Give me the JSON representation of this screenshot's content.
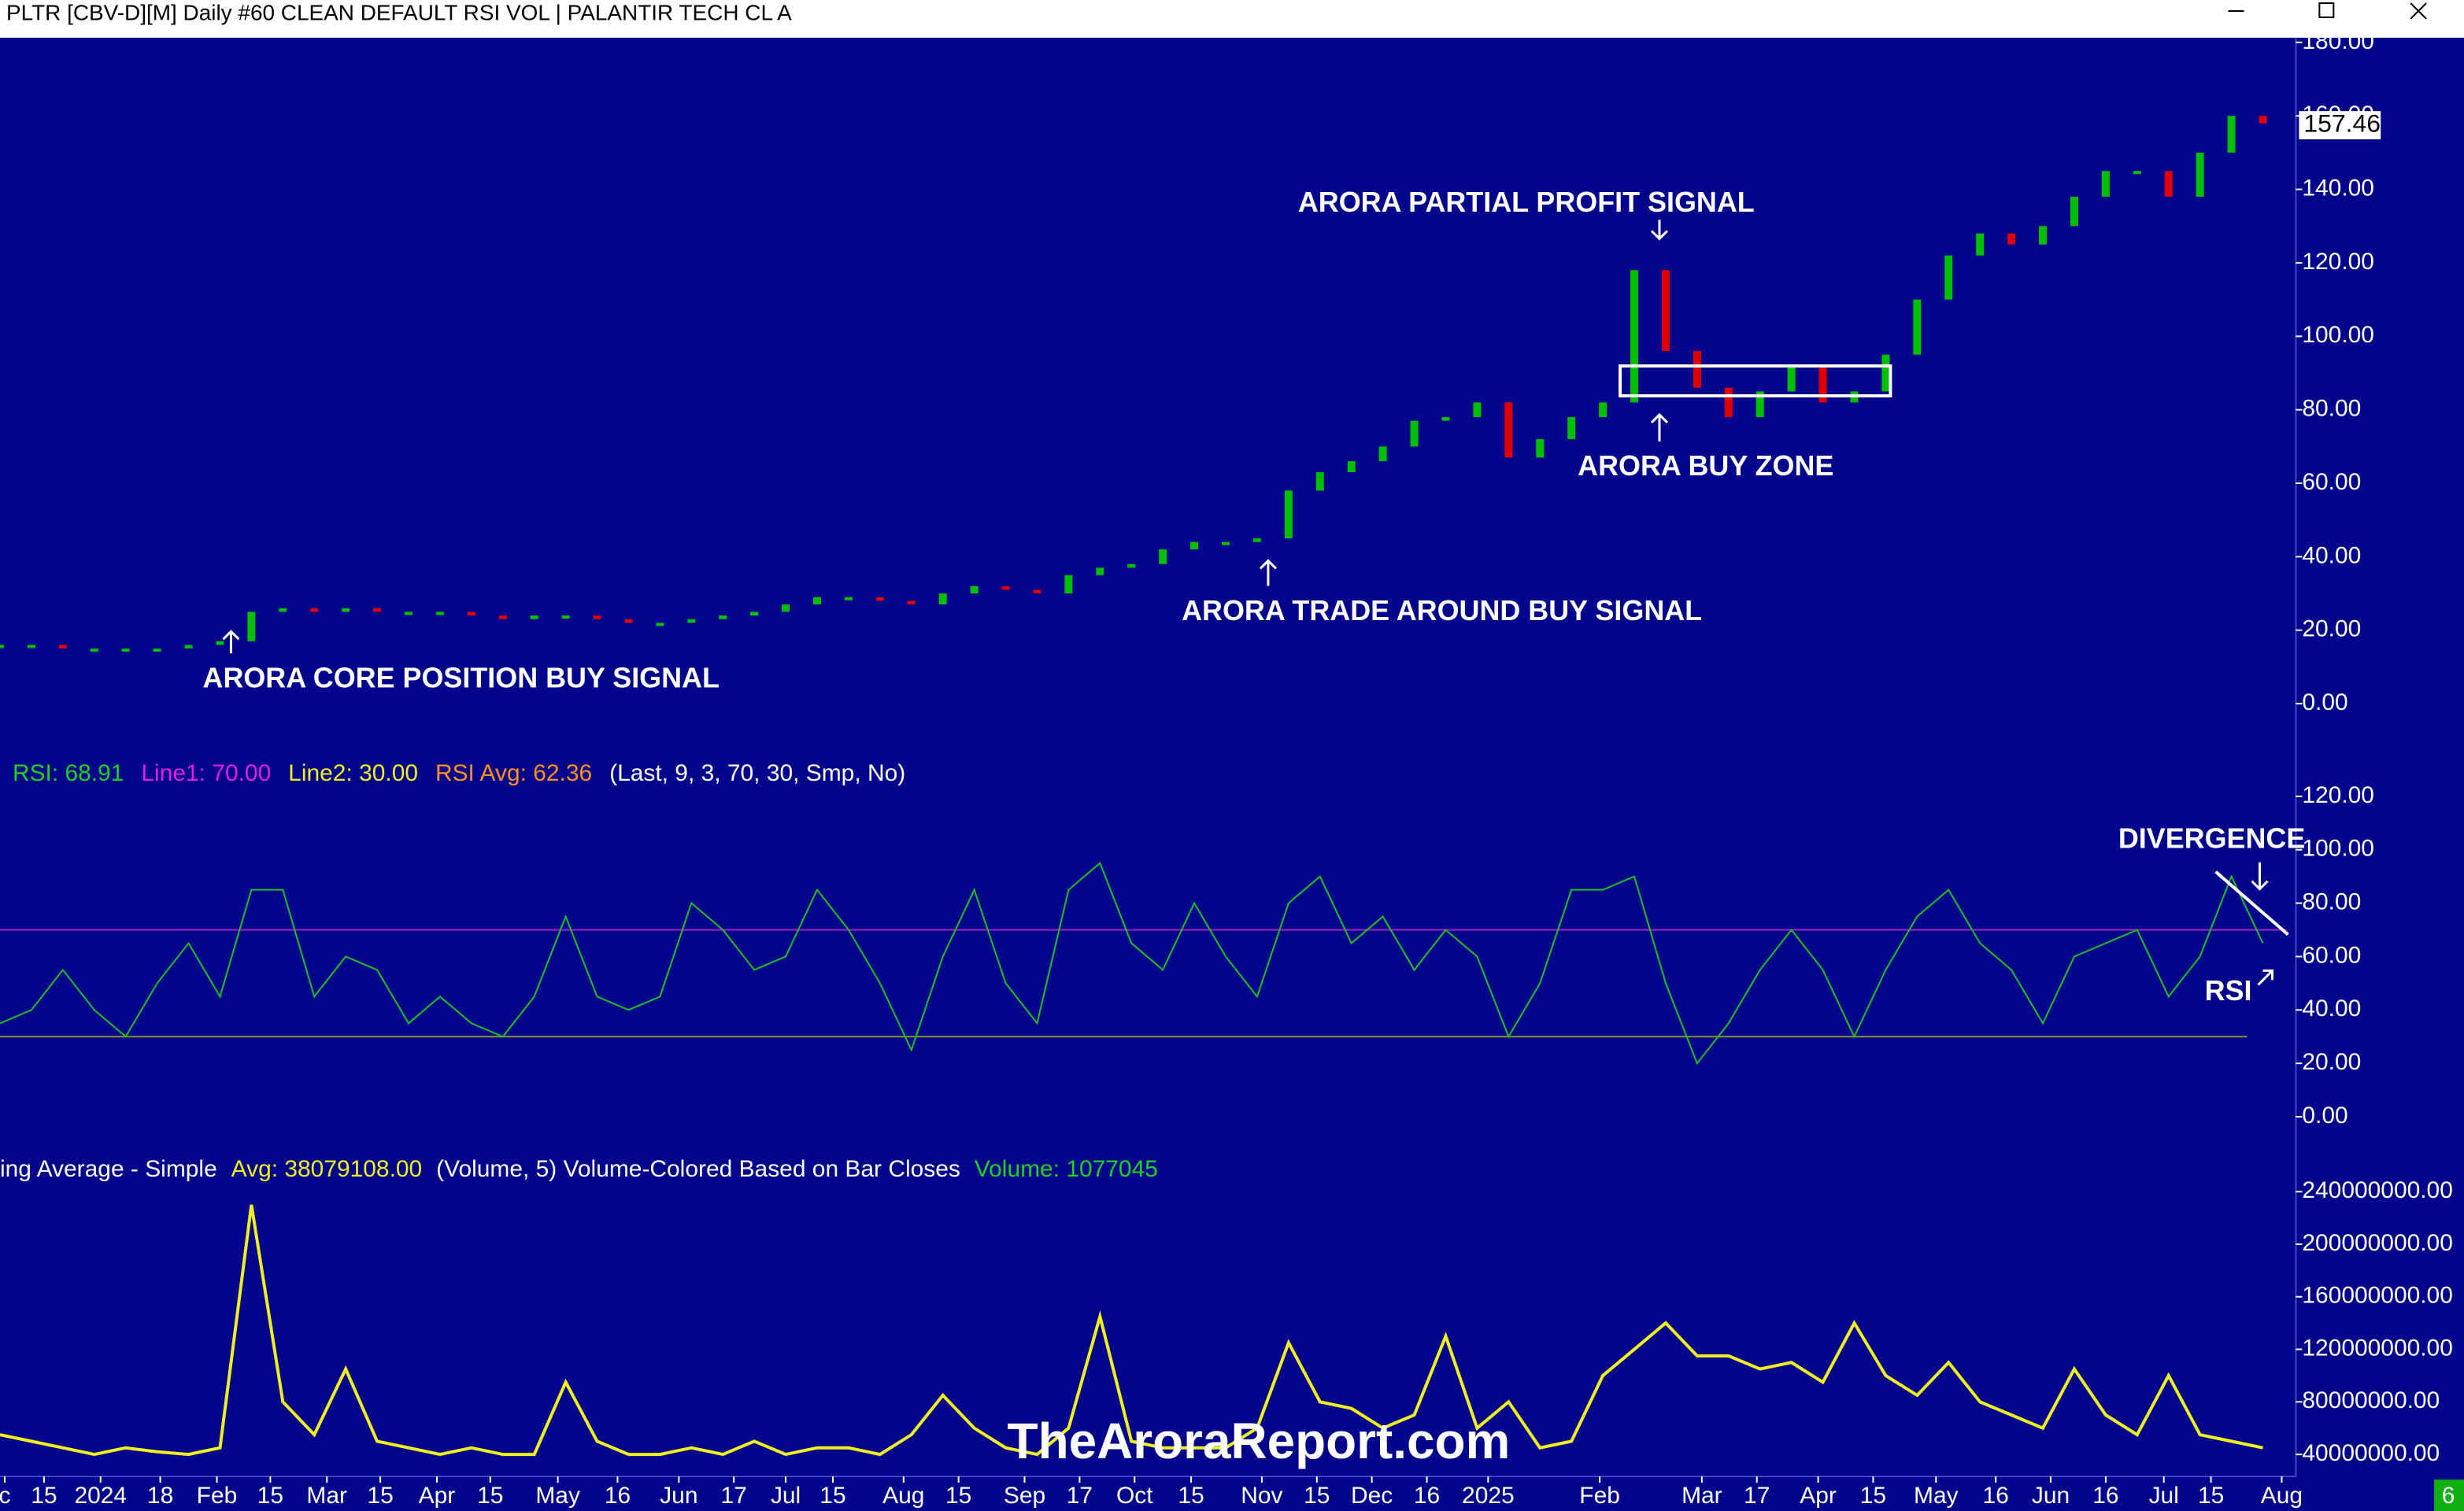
{
  "window": {
    "title": "PLTR [CBV-D][M]  Daily #60 CLEAN DEFAULT RSI VOL | PALANTIR TECH CL A"
  },
  "chart_data": {
    "type": "candlestick",
    "xlim": [
      0,
      73
    ],
    "xticks": [
      {
        "value": 0.15,
        "label": "c"
      },
      {
        "value": 1.4,
        "label": "15"
      },
      {
        "value": 3.2,
        "label": "2024"
      },
      {
        "value": 5.1,
        "label": "18"
      },
      {
        "value": 6.9,
        "label": "Feb"
      },
      {
        "value": 8.6,
        "label": "15"
      },
      {
        "value": 10.4,
        "label": "Mar"
      },
      {
        "value": 12.1,
        "label": "15"
      },
      {
        "value": 13.9,
        "label": "Apr"
      },
      {
        "value": 15.6,
        "label": "15"
      },
      {
        "value": 17.75,
        "label": "May"
      },
      {
        "value": 19.65,
        "label": "16"
      },
      {
        "value": 21.6,
        "label": "Jun"
      },
      {
        "value": 23.35,
        "label": "17"
      },
      {
        "value": 25,
        "label": "Jul"
      },
      {
        "value": 26.5,
        "label": "15"
      },
      {
        "value": 28.75,
        "label": "Aug"
      },
      {
        "value": 30.5,
        "label": "15"
      },
      {
        "value": 32.6,
        "label": "Sep"
      },
      {
        "value": 34.35,
        "label": "17"
      },
      {
        "value": 36.1,
        "label": "Oct"
      },
      {
        "value": 37.9,
        "label": "15"
      },
      {
        "value": 40.15,
        "label": "Nov"
      },
      {
        "value": 41.9,
        "label": "15"
      },
      {
        "value": 43.65,
        "label": "Dec"
      },
      {
        "value": 45.4,
        "label": "16"
      },
      {
        "value": 47.35,
        "label": "2025"
      },
      {
        "value": 50.9,
        "label": "Feb"
      },
      {
        "value": 54.15,
        "label": "Mar"
      },
      {
        "value": 55.9,
        "label": "17"
      },
      {
        "value": 57.85,
        "label": "Apr"
      },
      {
        "value": 59.6,
        "label": "15"
      },
      {
        "value": 61.6,
        "label": "May"
      },
      {
        "value": 63.5,
        "label": "16"
      },
      {
        "value": 65.25,
        "label": "Jun"
      },
      {
        "value": 67,
        "label": "16"
      },
      {
        "value": 68.85,
        "label": "Jul"
      },
      {
        "value": 70.35,
        "label": "15"
      },
      {
        "value": 72.6,
        "label": "Aug"
      }
    ],
    "price": {
      "color_up": "#00c000",
      "color_down": "#e00000",
      "values": [
        16,
        16,
        15,
        15,
        15,
        15,
        16,
        17,
        25,
        26,
        25,
        26,
        25,
        25,
        25,
        24,
        23,
        24,
        24,
        23,
        22,
        22,
        23,
        24,
        25,
        27,
        29,
        29,
        28,
        27,
        30,
        32,
        31,
        30,
        35,
        37,
        38,
        42,
        44,
        44,
        45,
        58,
        63,
        66,
        70,
        77,
        78,
        82,
        67,
        72,
        78,
        82,
        118,
        96,
        86,
        78,
        85,
        92,
        82,
        85,
        95,
        110,
        122,
        128,
        125,
        130,
        138,
        145,
        145,
        138,
        150,
        160,
        158
      ],
      "ylim": [
        0,
        180
      ],
      "yticks": [
        {
          "value": 0,
          "label": "0.00"
        },
        {
          "value": 20,
          "label": "20.00"
        },
        {
          "value": 40,
          "label": "40.00"
        },
        {
          "value": 60,
          "label": "60.00"
        },
        {
          "value": 80,
          "label": "80.00"
        },
        {
          "value": 100,
          "label": "100.00"
        },
        {
          "value": 120,
          "label": "120.00"
        },
        {
          "value": 140,
          "label": "140.00"
        },
        {
          "value": 160,
          "label": "160.00"
        },
        {
          "value": 180,
          "label": "180.00"
        }
      ],
      "last_price": "157.46",
      "annotations": [
        "ARORA CORE POSITION BUY SIGNAL",
        "ARORA TRADE AROUND BUY SIGNAL",
        "ARORA PARTIAL PROFIT SIGNAL",
        "ARORA BUY ZONE"
      ]
    },
    "rsi": {
      "color": "#20c020",
      "legend": [
        "RSI: 68.91",
        "Line1: 70.00",
        "Line2: 30.00",
        "RSI Avg: 62.36",
        "(Last, 9, 3, 70, 30, Smp, No)"
      ],
      "legend_colors": [
        "#20d020",
        "#e020e0",
        "#f0f020",
        "#ff9020",
        "#ffffff"
      ],
      "line1": 70,
      "line1_color": "#a020c0",
      "line2": 30,
      "line2_color": "#909020",
      "values": [
        35,
        40,
        55,
        40,
        30,
        50,
        65,
        45,
        85,
        85,
        45,
        60,
        55,
        35,
        45,
        35,
        30,
        45,
        75,
        45,
        40,
        45,
        80,
        70,
        55,
        60,
        85,
        70,
        50,
        25,
        60,
        85,
        50,
        35,
        85,
        95,
        65,
        55,
        80,
        60,
        45,
        80,
        90,
        65,
        75,
        55,
        70,
        60,
        30,
        50,
        85,
        85,
        90,
        50,
        20,
        35,
        55,
        70,
        55,
        30,
        55,
        75,
        85,
        65,
        55,
        35,
        60,
        65,
        70,
        45,
        60,
        90,
        65
      ],
      "ylim": [
        0,
        120
      ],
      "yticks": [
        {
          "value": 0,
          "label": "0.00"
        },
        {
          "value": 20,
          "label": "20.00"
        },
        {
          "value": 40,
          "label": "40.00"
        },
        {
          "value": 60,
          "label": "60.00"
        },
        {
          "value": 80,
          "label": "80.00"
        },
        {
          "value": 100,
          "label": "100.00"
        },
        {
          "value": 120,
          "label": "120.00"
        }
      ],
      "annotations": [
        "DIVERGENCE",
        "RSI"
      ]
    },
    "volume": {
      "color": "#f0f020",
      "legend": [
        "ing Average - Simple",
        "Avg: 38079108.00",
        "(Volume, 5)  Volume-Colored Based on Bar Closes",
        "Volume: 1077045"
      ],
      "legend_colors": [
        "#ffffff",
        "#f0f020",
        "#ffffff",
        "#20d020"
      ],
      "avg_values": [
        55000000,
        50000000,
        45000000,
        40000000,
        45000000,
        42000000,
        40000000,
        45000000,
        230000000,
        80000000,
        55000000,
        105000000,
        50000000,
        45000000,
        40000000,
        45000000,
        40000000,
        40000000,
        95000000,
        50000000,
        40000000,
        40000000,
        45000000,
        40000000,
        50000000,
        40000000,
        45000000,
        45000000,
        40000000,
        55000000,
        85000000,
        60000000,
        45000000,
        40000000,
        60000000,
        145000000,
        50000000,
        45000000,
        45000000,
        45000000,
        60000000,
        125000000,
        80000000,
        75000000,
        60000000,
        70000000,
        130000000,
        60000000,
        80000000,
        45000000,
        50000000,
        100000000,
        120000000,
        140000000,
        115000000,
        115000000,
        105000000,
        110000000,
        95000000,
        140000000,
        100000000,
        85000000,
        110000000,
        80000000,
        70000000,
        60000000,
        105000000,
        70000000,
        55000000,
        100000000,
        55000000,
        50000000,
        45000000
      ],
      "ylim": [
        28000000,
        248000000
      ],
      "yticks": [
        {
          "value": 40000000,
          "label": "40000000.00"
        },
        {
          "value": 80000000,
          "label": "80000000.00"
        },
        {
          "value": 120000000,
          "label": "120000000.00"
        },
        {
          "value": 160000000,
          "label": "160000000.00"
        },
        {
          "value": 200000000,
          "label": "200000000.00"
        },
        {
          "value": 240000000,
          "label": "240000000.00"
        }
      ]
    },
    "watermark": "TheAroraReport.com",
    "corner_label": "6"
  }
}
